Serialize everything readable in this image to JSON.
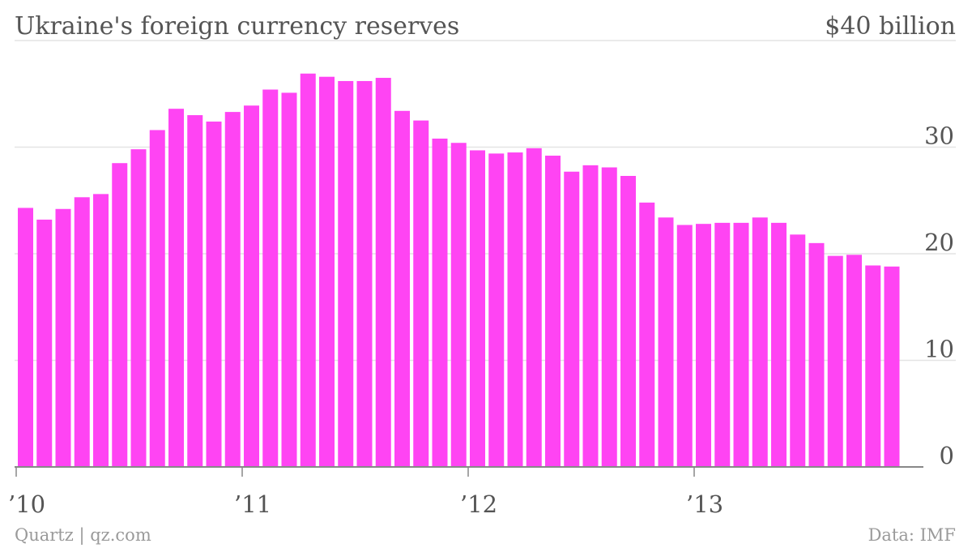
{
  "chart_data": {
    "type": "bar",
    "title": "Ukraine's foreign currency reserves",
    "unit_label": "$40 billion",
    "ylim": [
      0,
      40
    ],
    "y_ticks": [
      0,
      10,
      20,
      30
    ],
    "grid": true,
    "x_tick_labels": [
      "’10",
      "’11",
      "’12",
      "’13"
    ],
    "x_tick_bar_index": [
      0,
      12,
      24,
      36
    ],
    "bar_color": "#ff44f3",
    "values": [
      24.3,
      23.2,
      24.2,
      25.3,
      25.6,
      28.5,
      29.8,
      31.6,
      33.6,
      33.0,
      32.4,
      33.3,
      33.9,
      35.4,
      35.1,
      36.9,
      36.6,
      36.2,
      36.2,
      36.5,
      33.4,
      32.5,
      30.8,
      30.4,
      29.7,
      29.4,
      29.5,
      29.9,
      29.2,
      27.7,
      28.3,
      28.1,
      27.3,
      24.8,
      23.4,
      22.7,
      22.8,
      22.9,
      22.9,
      23.4,
      22.9,
      21.8,
      21.0,
      19.8,
      19.9,
      18.9,
      18.8
    ],
    "source": "Data: IMF",
    "credit": "Quartz | qz.com"
  }
}
